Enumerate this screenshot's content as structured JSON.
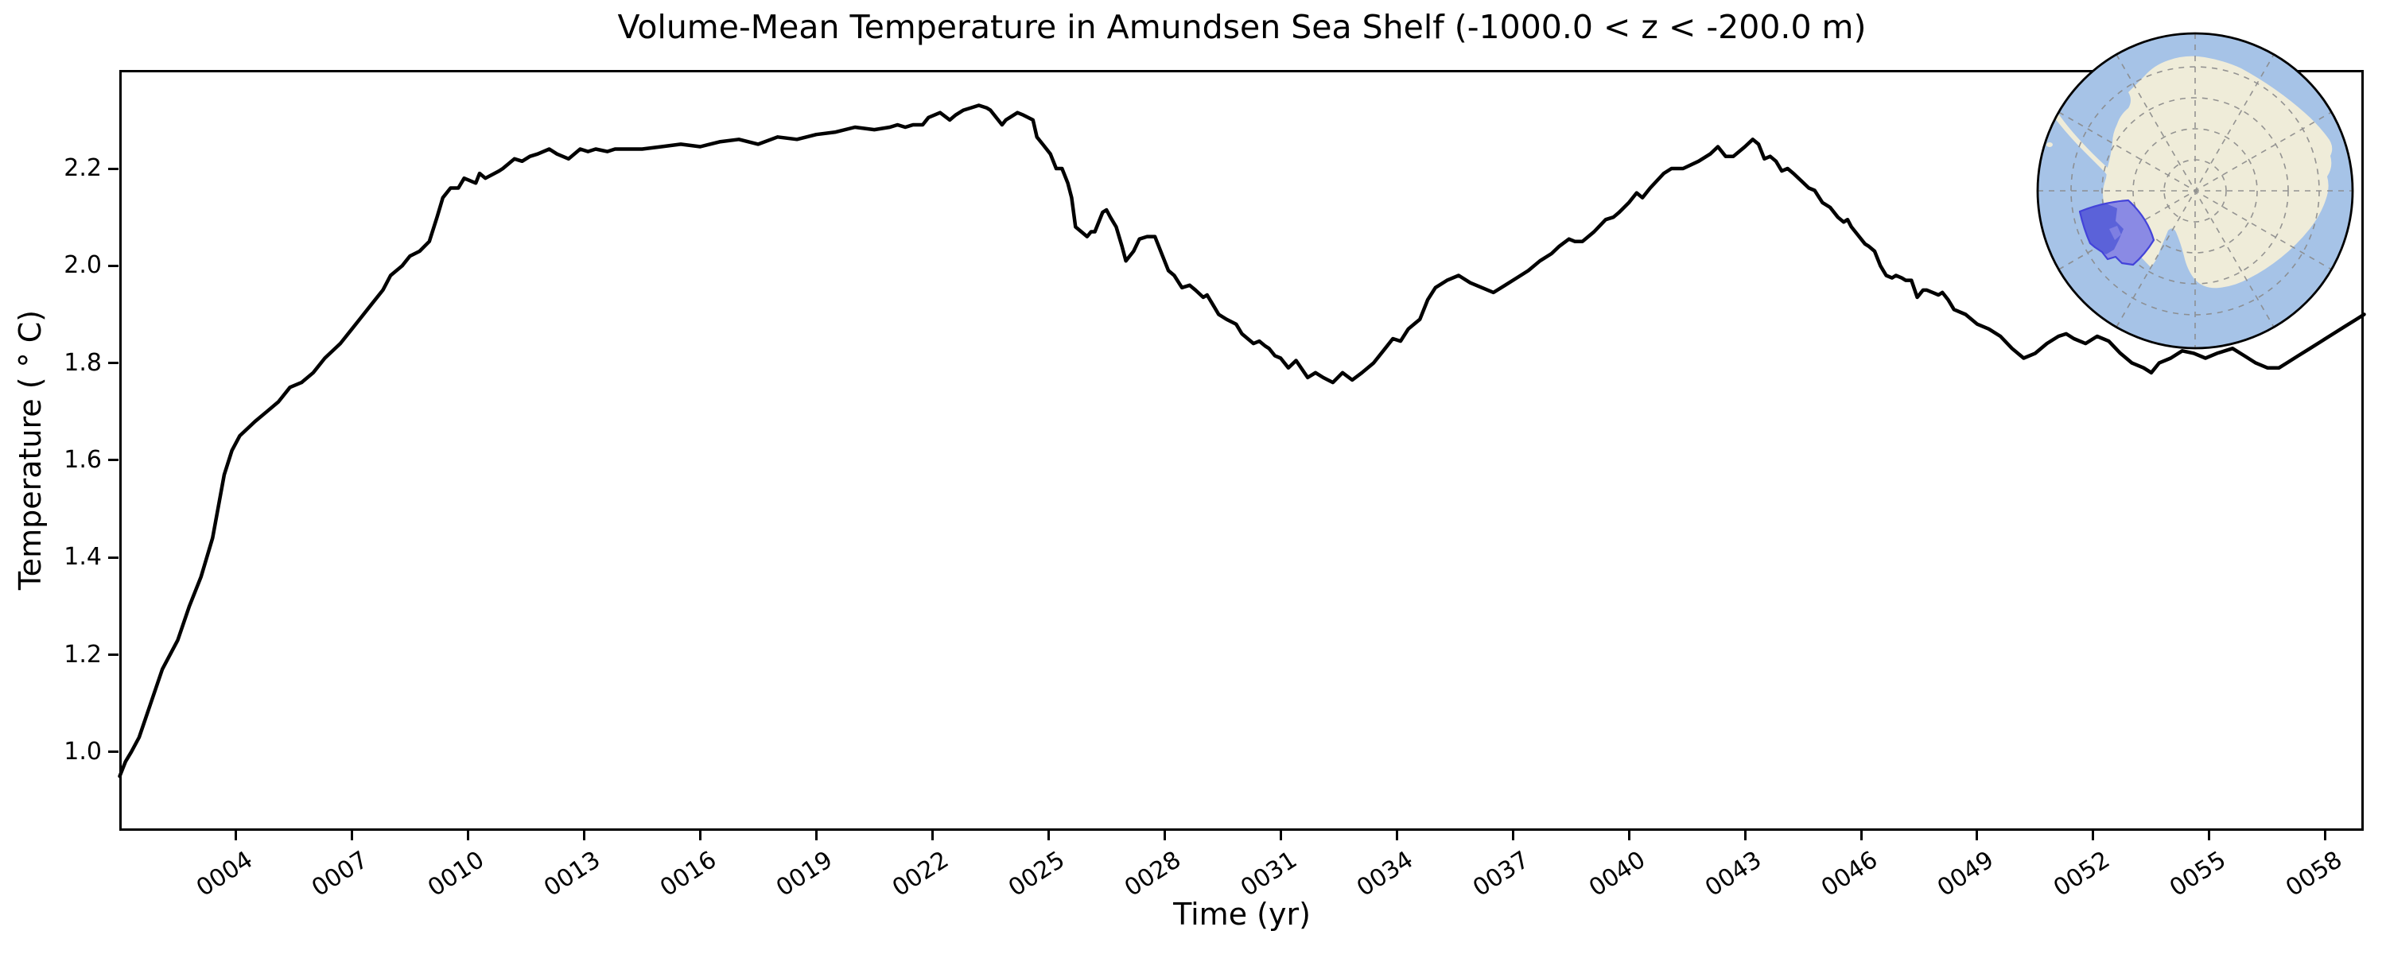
{
  "title": "Volume-Mean Temperature in Amundsen Sea Shelf (-1000.0 < z < -200.0 m)",
  "axes": {
    "x_label": "Time (yr)",
    "y_label": "Temperature ( ° C)",
    "x_ticks": [
      {
        "year": 4,
        "label": "0004"
      },
      {
        "year": 7,
        "label": "0007"
      },
      {
        "year": 10,
        "label": "0010"
      },
      {
        "year": 13,
        "label": "0013"
      },
      {
        "year": 16,
        "label": "0016"
      },
      {
        "year": 19,
        "label": "0019"
      },
      {
        "year": 22,
        "label": "0022"
      },
      {
        "year": 25,
        "label": "0025"
      },
      {
        "year": 28,
        "label": "0028"
      },
      {
        "year": 31,
        "label": "0031"
      },
      {
        "year": 34,
        "label": "0034"
      },
      {
        "year": 37,
        "label": "0037"
      },
      {
        "year": 40,
        "label": "0040"
      },
      {
        "year": 43,
        "label": "0043"
      },
      {
        "year": 46,
        "label": "0046"
      },
      {
        "year": 49,
        "label": "0049"
      },
      {
        "year": 52,
        "label": "0052"
      },
      {
        "year": 55,
        "label": "0055"
      },
      {
        "year": 58,
        "label": "0058"
      }
    ],
    "y_ticks": [
      "2.2",
      "2.0",
      "1.8",
      "1.6",
      "1.4",
      "1.2",
      "1.0"
    ],
    "y_tick_values": [
      2.2,
      2.0,
      1.8,
      1.6,
      1.4,
      1.2,
      1.0
    ]
  },
  "chart_data": {
    "type": "line",
    "title": "Volume-Mean Temperature in Amundsen Sea Shelf (-1000.0 < z < -200.0 m)",
    "xlabel": "Time (yr)",
    "ylabel": "Temperature ( ° C)",
    "xlim": [
      1.0,
      59.0
    ],
    "ylim": [
      0.84,
      2.4
    ],
    "grid": false,
    "legend": "none",
    "series_name": "volume-mean temperature",
    "line_color": "#000000",
    "line_width": 4.5,
    "x": [
      1.0,
      1.15,
      1.3,
      1.5,
      1.8,
      2.1,
      2.5,
      2.8,
      3.1,
      3.4,
      3.7,
      3.9,
      4.1,
      4.5,
      4.8,
      5.1,
      5.4,
      5.7,
      6.0,
      6.3,
      6.7,
      7.0,
      7.2,
      7.5,
      7.8,
      8.0,
      8.3,
      8.5,
      8.75,
      9.0,
      9.2,
      9.35,
      9.55,
      9.75,
      9.9,
      10.2,
      10.3,
      10.45,
      10.8,
      10.9,
      11.2,
      11.4,
      11.6,
      11.8,
      12.1,
      12.3,
      12.6,
      12.9,
      13.1,
      13.3,
      13.6,
      13.8,
      14.1,
      14.5,
      15.0,
      15.5,
      16.0,
      16.5,
      17.0,
      17.5,
      18.0,
      18.5,
      19.0,
      19.5,
      20.0,
      20.5,
      20.9,
      21.1,
      21.3,
      21.5,
      21.75,
      21.9,
      22.2,
      22.45,
      22.6,
      22.8,
      23.0,
      23.2,
      23.4,
      23.5,
      23.8,
      23.9,
      24.2,
      24.35,
      24.6,
      24.7,
      24.85,
      25.05,
      25.2,
      25.35,
      25.5,
      25.6,
      25.7,
      25.85,
      26.0,
      26.1,
      26.2,
      26.4,
      26.5,
      26.6,
      26.75,
      26.9,
      27.0,
      27.1,
      27.2,
      27.35,
      27.55,
      27.75,
      27.95,
      28.1,
      28.25,
      28.45,
      28.65,
      28.8,
      29.0,
      29.1,
      29.25,
      29.4,
      29.6,
      29.85,
      30.0,
      30.15,
      30.3,
      30.45,
      30.6,
      30.7,
      30.85,
      31.0,
      31.2,
      31.4,
      31.7,
      31.9,
      32.1,
      32.35,
      32.6,
      32.85,
      33.1,
      33.4,
      33.7,
      33.9,
      34.1,
      34.3,
      34.6,
      34.8,
      35.0,
      35.3,
      35.6,
      35.9,
      36.2,
      36.5,
      36.8,
      37.1,
      37.4,
      37.7,
      38.0,
      38.2,
      38.45,
      38.6,
      38.8,
      39.1,
      39.4,
      39.6,
      39.75,
      40.0,
      40.2,
      40.35,
      40.55,
      40.9,
      41.1,
      41.4,
      41.8,
      42.1,
      42.3,
      42.5,
      42.7,
      43.0,
      43.2,
      43.35,
      43.5,
      43.65,
      43.8,
      43.95,
      44.1,
      44.25,
      44.45,
      44.65,
      44.8,
      45.0,
      45.2,
      45.4,
      45.55,
      45.65,
      45.75,
      45.95,
      46.1,
      46.2,
      46.35,
      46.5,
      46.65,
      46.8,
      46.9,
      47.05,
      47.15,
      47.3,
      47.45,
      47.6,
      47.7,
      47.85,
      48.0,
      48.1,
      48.25,
      48.4,
      48.7,
      49.0,
      49.3,
      49.6,
      49.9,
      50.2,
      50.5,
      50.8,
      51.1,
      51.3,
      51.5,
      51.8,
      52.1,
      52.4,
      52.7,
      53.0,
      53.3,
      53.5,
      53.7,
      54.0,
      54.3,
      54.6,
      54.9,
      55.2,
      55.6,
      55.9,
      56.2,
      56.5,
      56.8,
      57.0,
      57.3,
      57.6,
      57.9,
      58.2,
      58.5,
      58.8,
      59.0
    ],
    "y": [
      0.95,
      0.98,
      1.0,
      1.03,
      1.1,
      1.17,
      1.23,
      1.3,
      1.36,
      1.44,
      1.57,
      1.62,
      1.65,
      1.68,
      1.7,
      1.72,
      1.75,
      1.76,
      1.78,
      1.81,
      1.84,
      1.87,
      1.89,
      1.92,
      1.95,
      1.98,
      2.0,
      2.02,
      2.03,
      2.05,
      2.1,
      2.14,
      2.16,
      2.16,
      2.18,
      2.17,
      2.19,
      2.18,
      2.195,
      2.2,
      2.22,
      2.215,
      2.225,
      2.23,
      2.24,
      2.23,
      2.22,
      2.24,
      2.235,
      2.24,
      2.235,
      2.24,
      2.24,
      2.24,
      2.245,
      2.25,
      2.245,
      2.255,
      2.26,
      2.25,
      2.265,
      2.26,
      2.27,
      2.275,
      2.285,
      2.28,
      2.285,
      2.29,
      2.285,
      2.29,
      2.29,
      2.305,
      2.315,
      2.3,
      2.31,
      2.32,
      2.325,
      2.33,
      2.325,
      2.32,
      2.29,
      2.3,
      2.315,
      2.31,
      2.3,
      2.265,
      2.25,
      2.23,
      2.2,
      2.2,
      2.17,
      2.14,
      2.08,
      2.07,
      2.06,
      2.07,
      2.07,
      2.11,
      2.115,
      2.1,
      2.08,
      2.04,
      2.01,
      2.02,
      2.03,
      2.055,
      2.06,
      2.06,
      2.02,
      1.99,
      1.98,
      1.955,
      1.96,
      1.95,
      1.935,
      1.94,
      1.92,
      1.9,
      1.89,
      1.88,
      1.86,
      1.85,
      1.84,
      1.845,
      1.835,
      1.83,
      1.815,
      1.81,
      1.79,
      1.805,
      1.77,
      1.78,
      1.77,
      1.76,
      1.78,
      1.765,
      1.78,
      1.8,
      1.83,
      1.85,
      1.845,
      1.87,
      1.89,
      1.93,
      1.955,
      1.97,
      1.98,
      1.965,
      1.955,
      1.945,
      1.96,
      1.975,
      1.99,
      2.01,
      2.025,
      2.04,
      2.055,
      2.05,
      2.05,
      2.07,
      2.095,
      2.1,
      2.11,
      2.13,
      2.15,
      2.14,
      2.16,
      2.19,
      2.2,
      2.2,
      2.215,
      2.23,
      2.245,
      2.225,
      2.225,
      2.245,
      2.26,
      2.25,
      2.22,
      2.225,
      2.215,
      2.195,
      2.2,
      2.19,
      2.175,
      2.16,
      2.155,
      2.13,
      2.12,
      2.1,
      2.09,
      2.095,
      2.08,
      2.06,
      2.045,
      2.04,
      2.03,
      2.0,
      1.98,
      1.975,
      1.98,
      1.975,
      1.97,
      1.97,
      1.935,
      1.95,
      1.95,
      1.945,
      1.94,
      1.945,
      1.93,
      1.91,
      1.9,
      1.88,
      1.87,
      1.855,
      1.83,
      1.81,
      1.82,
      1.84,
      1.855,
      1.86,
      1.85,
      1.84,
      1.855,
      1.845,
      1.82,
      1.8,
      1.79,
      1.78,
      1.8,
      1.81,
      1.825,
      1.82,
      1.81,
      1.82,
      1.83,
      1.815,
      1.8,
      1.79,
      1.79,
      1.8,
      1.815,
      1.83,
      1.845,
      1.86,
      1.875,
      1.89,
      1.9
    ]
  },
  "inset_map": {
    "name": "south-polar-stereographic locator map",
    "highlighted_region": "Amundsen Sea Shelf",
    "colors": {
      "ocean": "#a6c3e7",
      "land": "#efecd9",
      "region_fill_land": "#8a8ae4",
      "region_fill_ocean": "#5b62d9",
      "region_patch": "#7e7fe2",
      "region_outline": "#4343d9",
      "graticule": "#8a8a8a",
      "rim": "#000000"
    }
  }
}
